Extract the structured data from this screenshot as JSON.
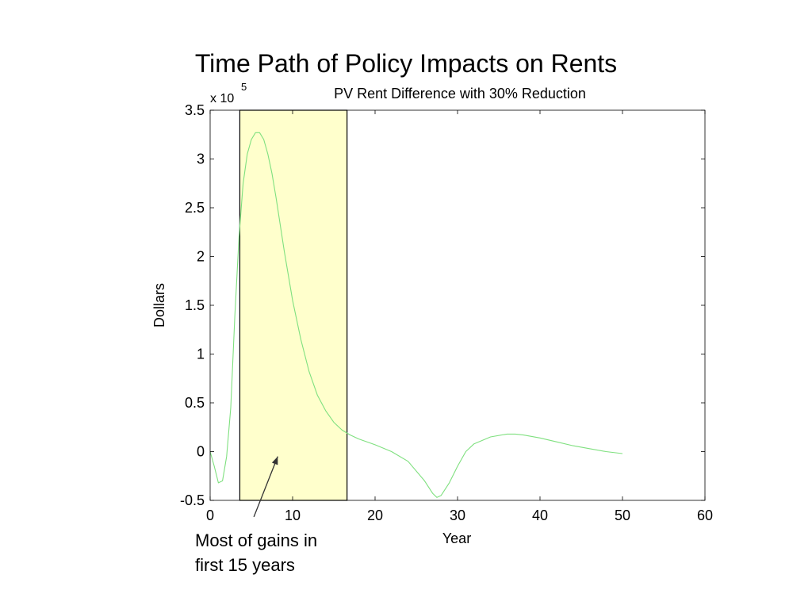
{
  "slide": {
    "title": "Time Path of Policy Impacts on Rents",
    "annotation_lines": [
      "Most of gains in",
      "first 15 years"
    ]
  },
  "chart_data": {
    "type": "line",
    "title": "PV Rent Difference with 30% Reduction",
    "xlabel": "Year",
    "ylabel": "Dollars",
    "y_multiplier_base": "x 10",
    "y_multiplier_exponent": "5",
    "xlim": [
      0,
      60
    ],
    "ylim": [
      -0.5,
      3.5
    ],
    "xticks": [
      0,
      10,
      20,
      30,
      40,
      50,
      60
    ],
    "yticks": [
      -0.5,
      0,
      0.5,
      1,
      1.5,
      2,
      2.5,
      3,
      3.5
    ],
    "xtick_labels": [
      "0",
      "10",
      "20",
      "30",
      "40",
      "50",
      "60"
    ],
    "ytick_labels": [
      "-0.5",
      "0",
      "0.5",
      "1",
      "1.5",
      "2",
      "2.5",
      "3",
      "3.5"
    ],
    "grid": false,
    "series": [
      {
        "color": "#7fe07f",
        "x": [
          0,
          0.5,
          1,
          1.5,
          2,
          2.5,
          3,
          3.5,
          4,
          4.5,
          5,
          5.5,
          6,
          6.5,
          7,
          7.5,
          8,
          9,
          10,
          11,
          12,
          13,
          14,
          15,
          16,
          17,
          18,
          20,
          22,
          24,
          26,
          27,
          27.5,
          28,
          29,
          30,
          31,
          32,
          34,
          36,
          37,
          38,
          40,
          42,
          44,
          46,
          48,
          50
        ],
        "values": [
          0.0,
          -0.15,
          -0.32,
          -0.3,
          -0.05,
          0.45,
          1.4,
          2.2,
          2.75,
          3.05,
          3.2,
          3.27,
          3.27,
          3.2,
          3.05,
          2.85,
          2.6,
          2.05,
          1.55,
          1.15,
          0.82,
          0.58,
          0.42,
          0.3,
          0.22,
          0.17,
          0.13,
          0.07,
          0.0,
          -0.1,
          -0.3,
          -0.43,
          -0.47,
          -0.45,
          -0.32,
          -0.15,
          0.0,
          0.08,
          0.15,
          0.18,
          0.18,
          0.17,
          0.14,
          0.1,
          0.06,
          0.03,
          0.0,
          -0.02
        ]
      }
    ],
    "highlight_band": {
      "x_start": 3.6,
      "x_end": 16.6,
      "fill": "#ffffcc"
    },
    "arrow": {
      "from": [
        5.3,
        -0.67
      ],
      "to": [
        8.2,
        -0.05
      ]
    }
  }
}
